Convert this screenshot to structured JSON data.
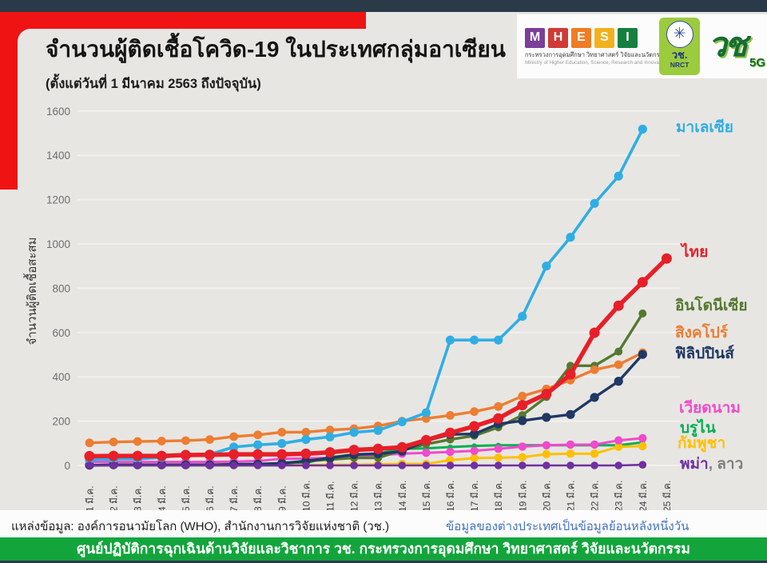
{
  "header": {
    "title": "จำนวนผู้ติดเชื้อโควิด-19 ในประเทศกลุ่มอาเซียน",
    "subtitle": "(ตั้งแต่วันที่ 1 มีนาคม 2563 ถึงปัจจุบัน)"
  },
  "logos": {
    "mhesi": {
      "letters": [
        "M",
        "H",
        "E",
        "S",
        "I"
      ],
      "thai_line": "กระทรวงการอุดมศึกษา วิทยาศาสตร์ วิจัยและนวัตกรรม",
      "eng_line": "Ministry of Higher Education, Science, Research and Innovation"
    },
    "nrct": {
      "emblem": "✳",
      "thai": "วช.",
      "eng": "NRCT"
    },
    "wo5g": {
      "text": "วช",
      "tag": "5G"
    }
  },
  "chart_data": {
    "type": "line",
    "title": "จำนวนผู้ติดเชื้อโควิด-19 ในประเทศกลุ่มอาเซียน",
    "xlabel": "",
    "ylabel": "จำนวนผู้ติดเชื้อสะสม",
    "ylim": [
      0,
      1600
    ],
    "ytick_step": 200,
    "grid": true,
    "legend_position": "right",
    "categories": [
      "1 มี.ค.",
      "2 มี.ค.",
      "3 มี.ค.",
      "4 มี.ค.",
      "5 มี.ค.",
      "6 มี.ค.",
      "7 มี.ค.",
      "8 มี.ค.",
      "9 มี.ค.",
      "10 มี.ค.",
      "11 มี.ค.",
      "12 มี.ค.",
      "13 มี.ค.",
      "14 มี.ค.",
      "15 มี.ค.",
      "16 มี.ค.",
      "17 มี.ค.",
      "18 มี.ค.",
      "19 มี.ค.",
      "20 มี.ค.",
      "21 มี.ค.",
      "22 มี.ค.",
      "23 มี.ค.",
      "24 มี.ค.",
      "25 มี.ค."
    ],
    "series": [
      {
        "name": "มาเลเซีย",
        "color": "#2FAEE4",
        "values": [
          25,
          29,
          29,
          36,
          50,
          50,
          83,
          93,
          99,
          117,
          129,
          149,
          158,
          197,
          238,
          566,
          566,
          566,
          673,
          900,
          1030,
          1183,
          1306,
          1518
        ]
      },
      {
        "name": "ไทย",
        "color": "#E71F28",
        "values": [
          42,
          43,
          43,
          43,
          47,
          48,
          50,
          50,
          50,
          53,
          59,
          70,
          75,
          82,
          114,
          147,
          177,
          212,
          272,
          322,
          411,
          599,
          721,
          827,
          934
        ]
      },
      {
        "name": "อินโดนีเซีย",
        "color": "#54792F",
        "values": [
          0,
          2,
          2,
          2,
          2,
          2,
          4,
          4,
          6,
          19,
          27,
          34,
          34,
          69,
          96,
          117,
          134,
          172,
          227,
          309,
          450,
          450,
          514,
          686
        ]
      },
      {
        "name": "สิงคโปร์",
        "color": "#ED7D31",
        "values": [
          102,
          106,
          108,
          110,
          112,
          117,
          130,
          138,
          150,
          150,
          160,
          166,
          178,
          200,
          212,
          226,
          243,
          266,
          313,
          345,
          385,
          432,
          455,
          509
        ]
      },
      {
        "name": "ฟิลิปปินส์",
        "color": "#1F3864",
        "values": [
          1,
          3,
          3,
          3,
          3,
          3,
          5,
          6,
          10,
          20,
          33,
          49,
          52,
          64,
          111,
          140,
          142,
          187,
          202,
          217,
          230,
          307,
          380,
          501
        ]
      },
      {
        "name": "เวียดนาม",
        "color": "#F04ACD",
        "values": [
          16,
          16,
          16,
          16,
          16,
          16,
          17,
          20,
          30,
          31,
          35,
          39,
          47,
          53,
          57,
          61,
          66,
          75,
          85,
          91,
          94,
          94,
          113,
          123
        ]
      },
      {
        "name": "บรูไน",
        "color": "#00B050",
        "values": [
          0,
          0,
          0,
          0,
          0,
          0,
          0,
          0,
          1,
          11,
          37,
          50,
          54,
          75,
          77,
          83,
          88,
          91,
          91,
          91,
          91,
          91,
          91,
          104
        ]
      },
      {
        "name": "กัมพูชา",
        "color": "#FFC000",
        "values": [
          1,
          1,
          1,
          1,
          1,
          1,
          1,
          2,
          2,
          2,
          3,
          3,
          5,
          7,
          7,
          24,
          33,
          35,
          37,
          51,
          53,
          53,
          84,
          87
        ]
      },
      {
        "name": "พม่า, ลาว",
        "color": "#7030A0",
        "values": [
          0,
          0,
          0,
          0,
          0,
          0,
          0,
          0,
          0,
          0,
          0,
          0,
          0,
          0,
          0,
          0,
          0,
          0,
          0,
          0,
          0,
          0,
          0,
          3
        ]
      }
    ],
    "legend_split": {
      "part1": "พม่า",
      "part2": ", ลาว"
    }
  },
  "footer": {
    "source": "แหล่งข้อมูล: องค์การอนามัยโลก (WHO), สำนักงานการวิจัยแห่งชาติ (วช.)",
    "note": "ข้อมูลของต่างประเทศเป็นข้อมูลย้อนหลังหนึ่งวัน",
    "banner": "ศูนย์ปฏิบัติการฉุกเฉินด้านวิจัยและวิชาการ    วช.    กระทรวงการอุดมศึกษา วิทยาศาสตร์ วิจัยและนวัตกรรม"
  }
}
